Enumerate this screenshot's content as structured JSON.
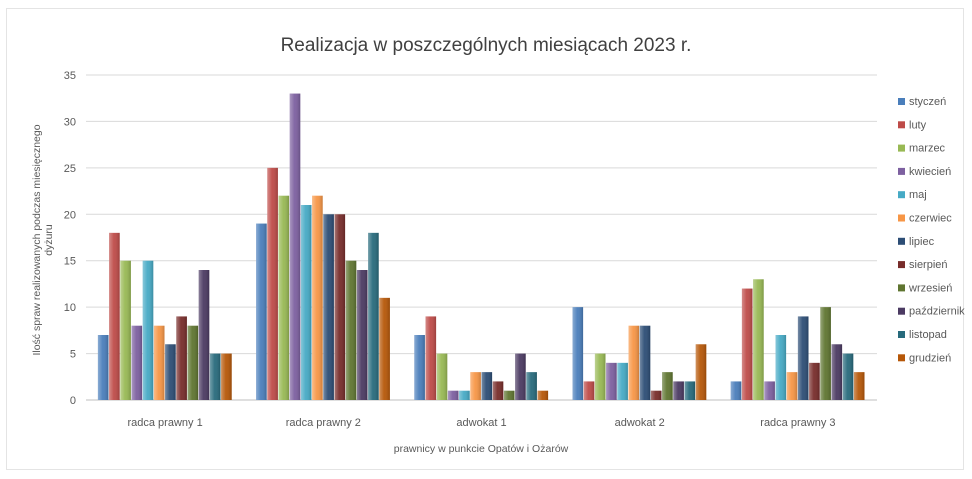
{
  "chart_data": {
    "type": "bar",
    "title": "Realizacja w poszczególnych miesiącach 2023 r.",
    "xlabel": "prawnicy w punkcie Opatów i Ożarów",
    "ylabel_line1": "Ilość spraw realizowanych podczas miesięcznego",
    "ylabel_line2": "dyżuru",
    "ylim": [
      0,
      35
    ],
    "yticks": [
      0,
      5,
      10,
      15,
      20,
      25,
      30,
      35
    ],
    "grid": true,
    "legend_position": "right",
    "categories": [
      "radca prawny 1",
      "radca prawny 2",
      "adwokat 1",
      "adwokat 2",
      "radca prawny 3"
    ],
    "series": [
      {
        "name": "styczeń",
        "color": "#4a7ebb",
        "values": [
          7,
          19,
          7,
          10,
          2
        ]
      },
      {
        "name": "luty",
        "color": "#be4b48",
        "values": [
          18,
          25,
          9,
          2,
          12
        ]
      },
      {
        "name": "marzec",
        "color": "#98b954",
        "values": [
          15,
          22,
          5,
          5,
          13
        ]
      },
      {
        "name": "kwiecień",
        "color": "#7d60a0",
        "values": [
          8,
          33,
          1,
          4,
          2
        ]
      },
      {
        "name": "maj",
        "color": "#46aac5",
        "values": [
          15,
          21,
          1,
          4,
          7
        ]
      },
      {
        "name": "czerwiec",
        "color": "#f79646",
        "values": [
          8,
          22,
          3,
          8,
          3
        ]
      },
      {
        "name": "lipiec",
        "color": "#2c4d75",
        "values": [
          6,
          20,
          3,
          8,
          9
        ]
      },
      {
        "name": "sierpień",
        "color": "#772c2a",
        "values": [
          9,
          20,
          2,
          1,
          4
        ]
      },
      {
        "name": "wrzesień",
        "color": "#5f7530",
        "values": [
          8,
          15,
          1,
          3,
          10
        ]
      },
      {
        "name": "październik",
        "color": "#4b3a62",
        "values": [
          14,
          14,
          5,
          2,
          6
        ]
      },
      {
        "name": "listopad",
        "color": "#276a7c",
        "values": [
          5,
          18,
          3,
          2,
          5
        ]
      },
      {
        "name": "grudzień",
        "color": "#b65708",
        "values": [
          5,
          11,
          1,
          6,
          3
        ]
      }
    ]
  }
}
